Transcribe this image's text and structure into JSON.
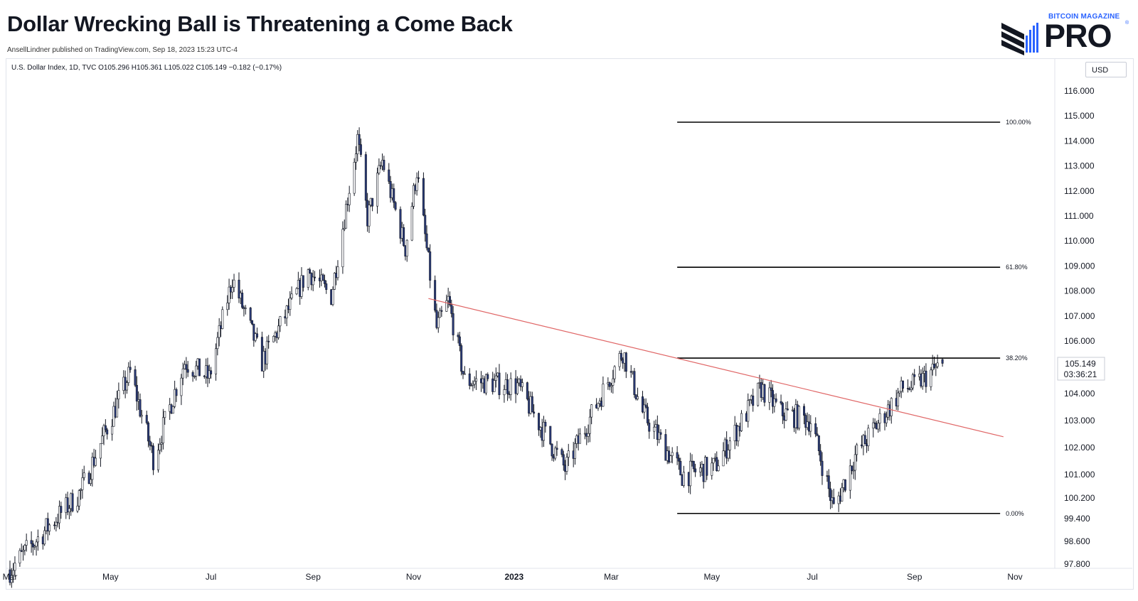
{
  "header": {
    "title": "Dollar Wrecking Ball is Threatening a Come Back",
    "byline": "AnsellLindner published on TradingView.com, Sep 18, 2023 15:23 UTC-4"
  },
  "logo": {
    "small_text": "BITCOIN MAGAZINE",
    "big_text": "PRO",
    "reg_mark": "®"
  },
  "legend": {
    "text": "U.S. Dollar Index, 1D, TVC  O105.296  H105.361  L105.022  C105.149  −0.182 (−0.17%)"
  },
  "currency_button": "USD",
  "price_tag": {
    "price": "105.149",
    "countdown": "03:36:21"
  },
  "colors": {
    "up_candle": "#ffffff",
    "down_candle": "#2a3b7a",
    "wick": "#131722",
    "trendline": "#e06666",
    "fib": "#000000"
  },
  "chart_data": {
    "type": "candlestick",
    "title": "U.S. Dollar Index, 1D, TVC",
    "y_ticks": [
      "116.000",
      "115.000",
      "114.000",
      "113.000",
      "112.000",
      "111.000",
      "110.000",
      "109.000",
      "108.000",
      "107.000",
      "106.000",
      "104.000",
      "103.000",
      "102.000",
      "101.000",
      "100.200",
      "99.400",
      "98.600",
      "97.800"
    ],
    "x_ticks": [
      {
        "label": "Mar",
        "date": "2022-03-01",
        "bold": false
      },
      {
        "label": "May",
        "date": "2022-05-01",
        "bold": false
      },
      {
        "label": "Jul",
        "date": "2022-07-01",
        "bold": false
      },
      {
        "label": "Sep",
        "date": "2022-09-01",
        "bold": false
      },
      {
        "label": "Nov",
        "date": "2022-11-01",
        "bold": false
      },
      {
        "label": "2023",
        "date": "2023-01-01",
        "bold": true
      },
      {
        "label": "Mar",
        "date": "2023-03-01",
        "bold": false
      },
      {
        "label": "May",
        "date": "2023-05-01",
        "bold": false
      },
      {
        "label": "Jul",
        "date": "2023-07-01",
        "bold": false
      },
      {
        "label": "Sep",
        "date": "2023-09-01",
        "bold": false
      },
      {
        "label": "Nov",
        "date": "2023-11-01",
        "bold": false
      }
    ],
    "swing_points": [
      {
        "date": "2022-03-01",
        "close": 97.6
      },
      {
        "date": "2022-04-13",
        "close": 100.4
      },
      {
        "date": "2022-05-13",
        "close": 104.8
      },
      {
        "date": "2022-05-27",
        "close": 101.6
      },
      {
        "date": "2022-06-15",
        "close": 105.2
      },
      {
        "date": "2022-06-30",
        "close": 104.6
      },
      {
        "date": "2022-07-14",
        "close": 108.5
      },
      {
        "date": "2022-08-01",
        "close": 105.2
      },
      {
        "date": "2022-08-29",
        "close": 108.8
      },
      {
        "date": "2022-09-12",
        "close": 107.8
      },
      {
        "date": "2022-09-28",
        "close": 114.1
      },
      {
        "date": "2022-10-04",
        "close": 110.9
      },
      {
        "date": "2022-10-13",
        "close": 113.2
      },
      {
        "date": "2022-10-27",
        "close": 109.7
      },
      {
        "date": "2022-11-03",
        "close": 112.8
      },
      {
        "date": "2022-11-15",
        "close": 106.5
      },
      {
        "date": "2022-11-22",
        "close": 107.6
      },
      {
        "date": "2022-12-02",
        "close": 104.5
      },
      {
        "date": "2023-01-03",
        "close": 104.3
      },
      {
        "date": "2023-02-01",
        "close": 101.2
      },
      {
        "date": "2023-03-08",
        "close": 105.6
      },
      {
        "date": "2023-03-20",
        "close": 103.3
      },
      {
        "date": "2023-04-13",
        "close": 101.0
      },
      {
        "date": "2023-05-03",
        "close": 101.3
      },
      {
        "date": "2023-05-31",
        "close": 104.2
      },
      {
        "date": "2023-06-12",
        "close": 103.3
      },
      {
        "date": "2023-06-30",
        "close": 103.0
      },
      {
        "date": "2023-07-14",
        "close": 99.8
      },
      {
        "date": "2023-07-27",
        "close": 101.7
      },
      {
        "date": "2023-08-25",
        "close": 104.2
      },
      {
        "date": "2023-09-01",
        "close": 104.3
      },
      {
        "date": "2023-09-18",
        "close": 105.149
      }
    ],
    "fib_levels": [
      {
        "label": "100.00%",
        "price": 114.75,
        "from": "2023-04-10",
        "to": "2023-10-23"
      },
      {
        "label": "61.80%",
        "price": 108.95,
        "from": "2023-04-10",
        "to": "2023-10-23"
      },
      {
        "label": "38.20%",
        "price": 105.35,
        "from": "2023-04-10",
        "to": "2023-10-23"
      },
      {
        "label": "0.00%",
        "price": 99.6,
        "from": "2023-04-10",
        "to": "2023-10-23"
      }
    ],
    "trendline": {
      "start": {
        "date": "2022-11-10",
        "price": 107.7
      },
      "end": {
        "date": "2023-10-25",
        "price": 102.4
      }
    },
    "last": {
      "open": 105.296,
      "high": 105.361,
      "low": 105.022,
      "close": 105.149,
      "change": -0.182,
      "change_pct": -0.17
    }
  }
}
